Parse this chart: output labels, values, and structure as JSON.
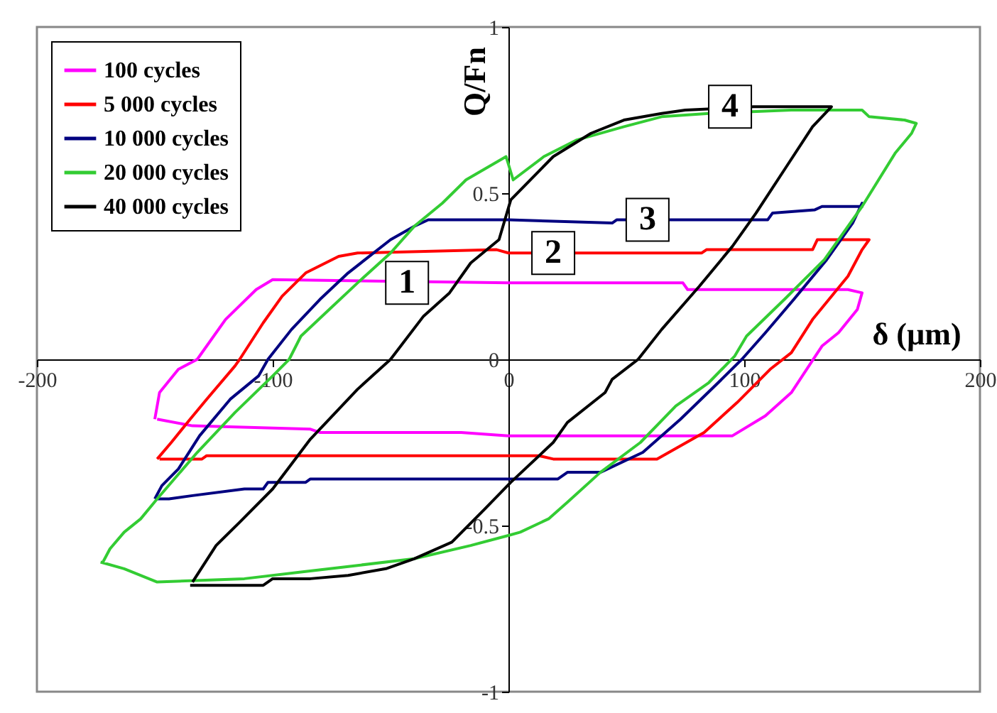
{
  "chart_data": {
    "type": "line",
    "xlabel": "δ (µm)",
    "ylabel": "Q/Fn",
    "xlim": [
      -200,
      200
    ],
    "xticks": [
      -200,
      -100,
      0,
      100,
      200
    ],
    "ylim": [
      -1,
      1
    ],
    "yticks": [
      -1,
      -0.5,
      0,
      0.5,
      1
    ],
    "grid": false,
    "legend": "top left",
    "line_style": "solid",
    "marker": "none",
    "series": [
      {
        "name": "100 cycles",
        "color": "#ff00ff",
        "x": [
          -150,
          -148,
          -140,
          -132,
          -120,
          -107,
          -100,
          0,
          74,
          76,
          144,
          150,
          148,
          140,
          133,
          120,
          109,
          95,
          0,
          -20,
          -80,
          -84,
          -134,
          -149
        ],
        "values": [
          -0.18,
          -0.1,
          -0.03,
          0,
          0.12,
          0.21,
          0.24,
          0.23,
          0.23,
          0.21,
          0.21,
          0.2,
          0.15,
          0.08,
          0.04,
          -0.1,
          -0.17,
          -0.23,
          -0.23,
          -0.22,
          -0.22,
          -0.21,
          -0.2,
          -0.18
        ]
      },
      {
        "name": "5 000 cycles",
        "color": "#ff0000",
        "x": [
          -149,
          -143,
          -135,
          -128,
          -116,
          -114,
          -104,
          -96,
          -86,
          -72,
          -64,
          -5,
          0,
          82,
          84,
          129,
          131,
          153,
          150,
          144,
          129,
          120,
          111,
          97,
          83,
          63,
          19,
          13,
          -128,
          -130,
          -148
        ],
        "values": [
          -0.3,
          -0.25,
          -0.18,
          -0.12,
          -0.02,
          0,
          0.11,
          0.19,
          0.26,
          0.31,
          0.32,
          0.33,
          0.32,
          0.32,
          0.33,
          0.33,
          0.36,
          0.36,
          0.33,
          0.25,
          0.12,
          0.02,
          -0.03,
          -0.13,
          -0.22,
          -0.3,
          -0.3,
          -0.29,
          -0.29,
          -0.3,
          -0.3
        ]
      },
      {
        "name": "10 000 cycles",
        "color": "#000080",
        "x": [
          -150,
          -147,
          -140,
          -131,
          -118,
          -106,
          -102,
          -92,
          -80,
          -68,
          -50,
          -40,
          -34,
          0,
          44,
          46,
          110,
          112,
          130,
          133,
          150,
          150,
          146,
          135,
          121,
          109,
          99,
          89,
          73,
          57,
          39,
          25,
          21,
          -84,
          -86,
          -102,
          -104,
          -112,
          -134,
          -144,
          -149
        ],
        "values": [
          -0.42,
          -0.38,
          -0.33,
          -0.23,
          -0.12,
          -0.05,
          0,
          0.09,
          0.18,
          0.26,
          0.36,
          0.4,
          0.42,
          0.42,
          0.41,
          0.42,
          0.42,
          0.44,
          0.45,
          0.46,
          0.46,
          0.47,
          0.41,
          0.3,
          0.18,
          0.08,
          0,
          -0.07,
          -0.18,
          -0.28,
          -0.34,
          -0.34,
          -0.36,
          -0.36,
          -0.37,
          -0.37,
          -0.39,
          -0.39,
          -0.41,
          -0.42,
          -0.42
        ]
      },
      {
        "name": "20 000 cycles",
        "color": "#33cc33",
        "x": [
          -173,
          -163,
          -149,
          -112,
          -88,
          -64,
          -40,
          -16,
          0,
          5,
          17,
          25,
          39,
          56,
          71,
          85,
          96,
          101,
          117,
          134,
          150,
          164,
          171,
          173,
          168,
          153,
          150,
          120,
          85,
          65,
          49,
          29,
          15,
          2,
          -1,
          -18,
          -28,
          -40,
          -50,
          -64,
          -76,
          -88,
          -93,
          -100,
          -116,
          -132,
          -149,
          -156,
          -163,
          -169,
          -172
        ],
        "values": [
          -0.61,
          -0.63,
          -0.67,
          -0.66,
          -0.64,
          -0.62,
          -0.6,
          -0.56,
          -0.53,
          -0.52,
          -0.48,
          -0.43,
          -0.34,
          -0.25,
          -0.14,
          -0.07,
          0.01,
          0.07,
          0.18,
          0.3,
          0.46,
          0.62,
          0.68,
          0.71,
          0.72,
          0.73,
          0.75,
          0.75,
          0.74,
          0.73,
          0.7,
          0.66,
          0.61,
          0.54,
          0.61,
          0.54,
          0.47,
          0.4,
          0.32,
          0.23,
          0.15,
          0.07,
          0,
          -0.05,
          -0.16,
          -0.28,
          -0.42,
          -0.48,
          -0.52,
          -0.57,
          -0.61
        ]
      },
      {
        "name": "40 000 cycles",
        "color": "#000000",
        "x": [
          -135,
          -104,
          -100,
          -84,
          -68,
          -52,
          -40,
          -24,
          -10,
          1,
          19,
          25,
          41,
          44,
          55,
          65,
          81,
          95,
          105,
          117,
          129,
          137,
          104,
          75,
          65,
          49,
          35,
          19,
          1,
          -4,
          -16,
          -25,
          -36,
          -50,
          -64,
          -84,
          -100,
          -114,
          -124,
          -134
        ],
        "values": [
          -0.68,
          -0.68,
          -0.66,
          -0.66,
          -0.65,
          -0.63,
          -0.6,
          -0.55,
          -0.45,
          -0.37,
          -0.25,
          -0.19,
          -0.1,
          -0.06,
          0,
          0.09,
          0.22,
          0.34,
          0.44,
          0.57,
          0.7,
          0.76,
          0.76,
          0.75,
          0.74,
          0.72,
          0.68,
          0.61,
          0.48,
          0.36,
          0.29,
          0.2,
          0.13,
          0,
          -0.09,
          -0.24,
          -0.39,
          -0.49,
          -0.56,
          -0.67
        ]
      }
    ],
    "annotations": [
      {
        "text": "1",
        "x": -43,
        "y": 0.23
      },
      {
        "text": "2",
        "x": 19,
        "y": 0.32
      },
      {
        "text": "3",
        "x": 59,
        "y": 0.42
      },
      {
        "text": "4",
        "x": 94,
        "y": 0.76
      }
    ]
  }
}
